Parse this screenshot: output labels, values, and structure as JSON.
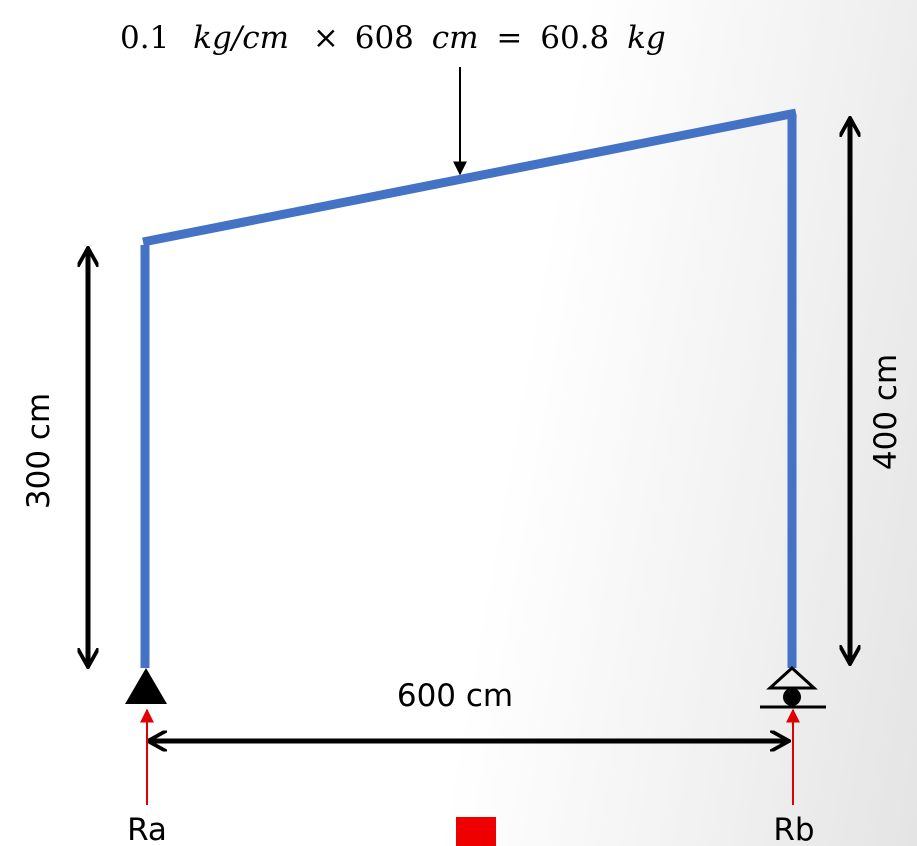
{
  "load_equation": {
    "coef": "0.1",
    "unit_rate": "kg/cm",
    "times": "×",
    "length": "608",
    "length_unit": "cm",
    "equals": "=",
    "result": "60.8",
    "result_unit": "kg"
  },
  "dimensions": {
    "left_height": "300 cm",
    "right_height": "400 cm",
    "span": "600 cm"
  },
  "reactions": {
    "left": "Ra",
    "right": "Rb"
  },
  "colors": {
    "frame": "#4472c4",
    "dimension": "#000000",
    "reaction": "#e00000",
    "marker": "#ee0000"
  }
}
